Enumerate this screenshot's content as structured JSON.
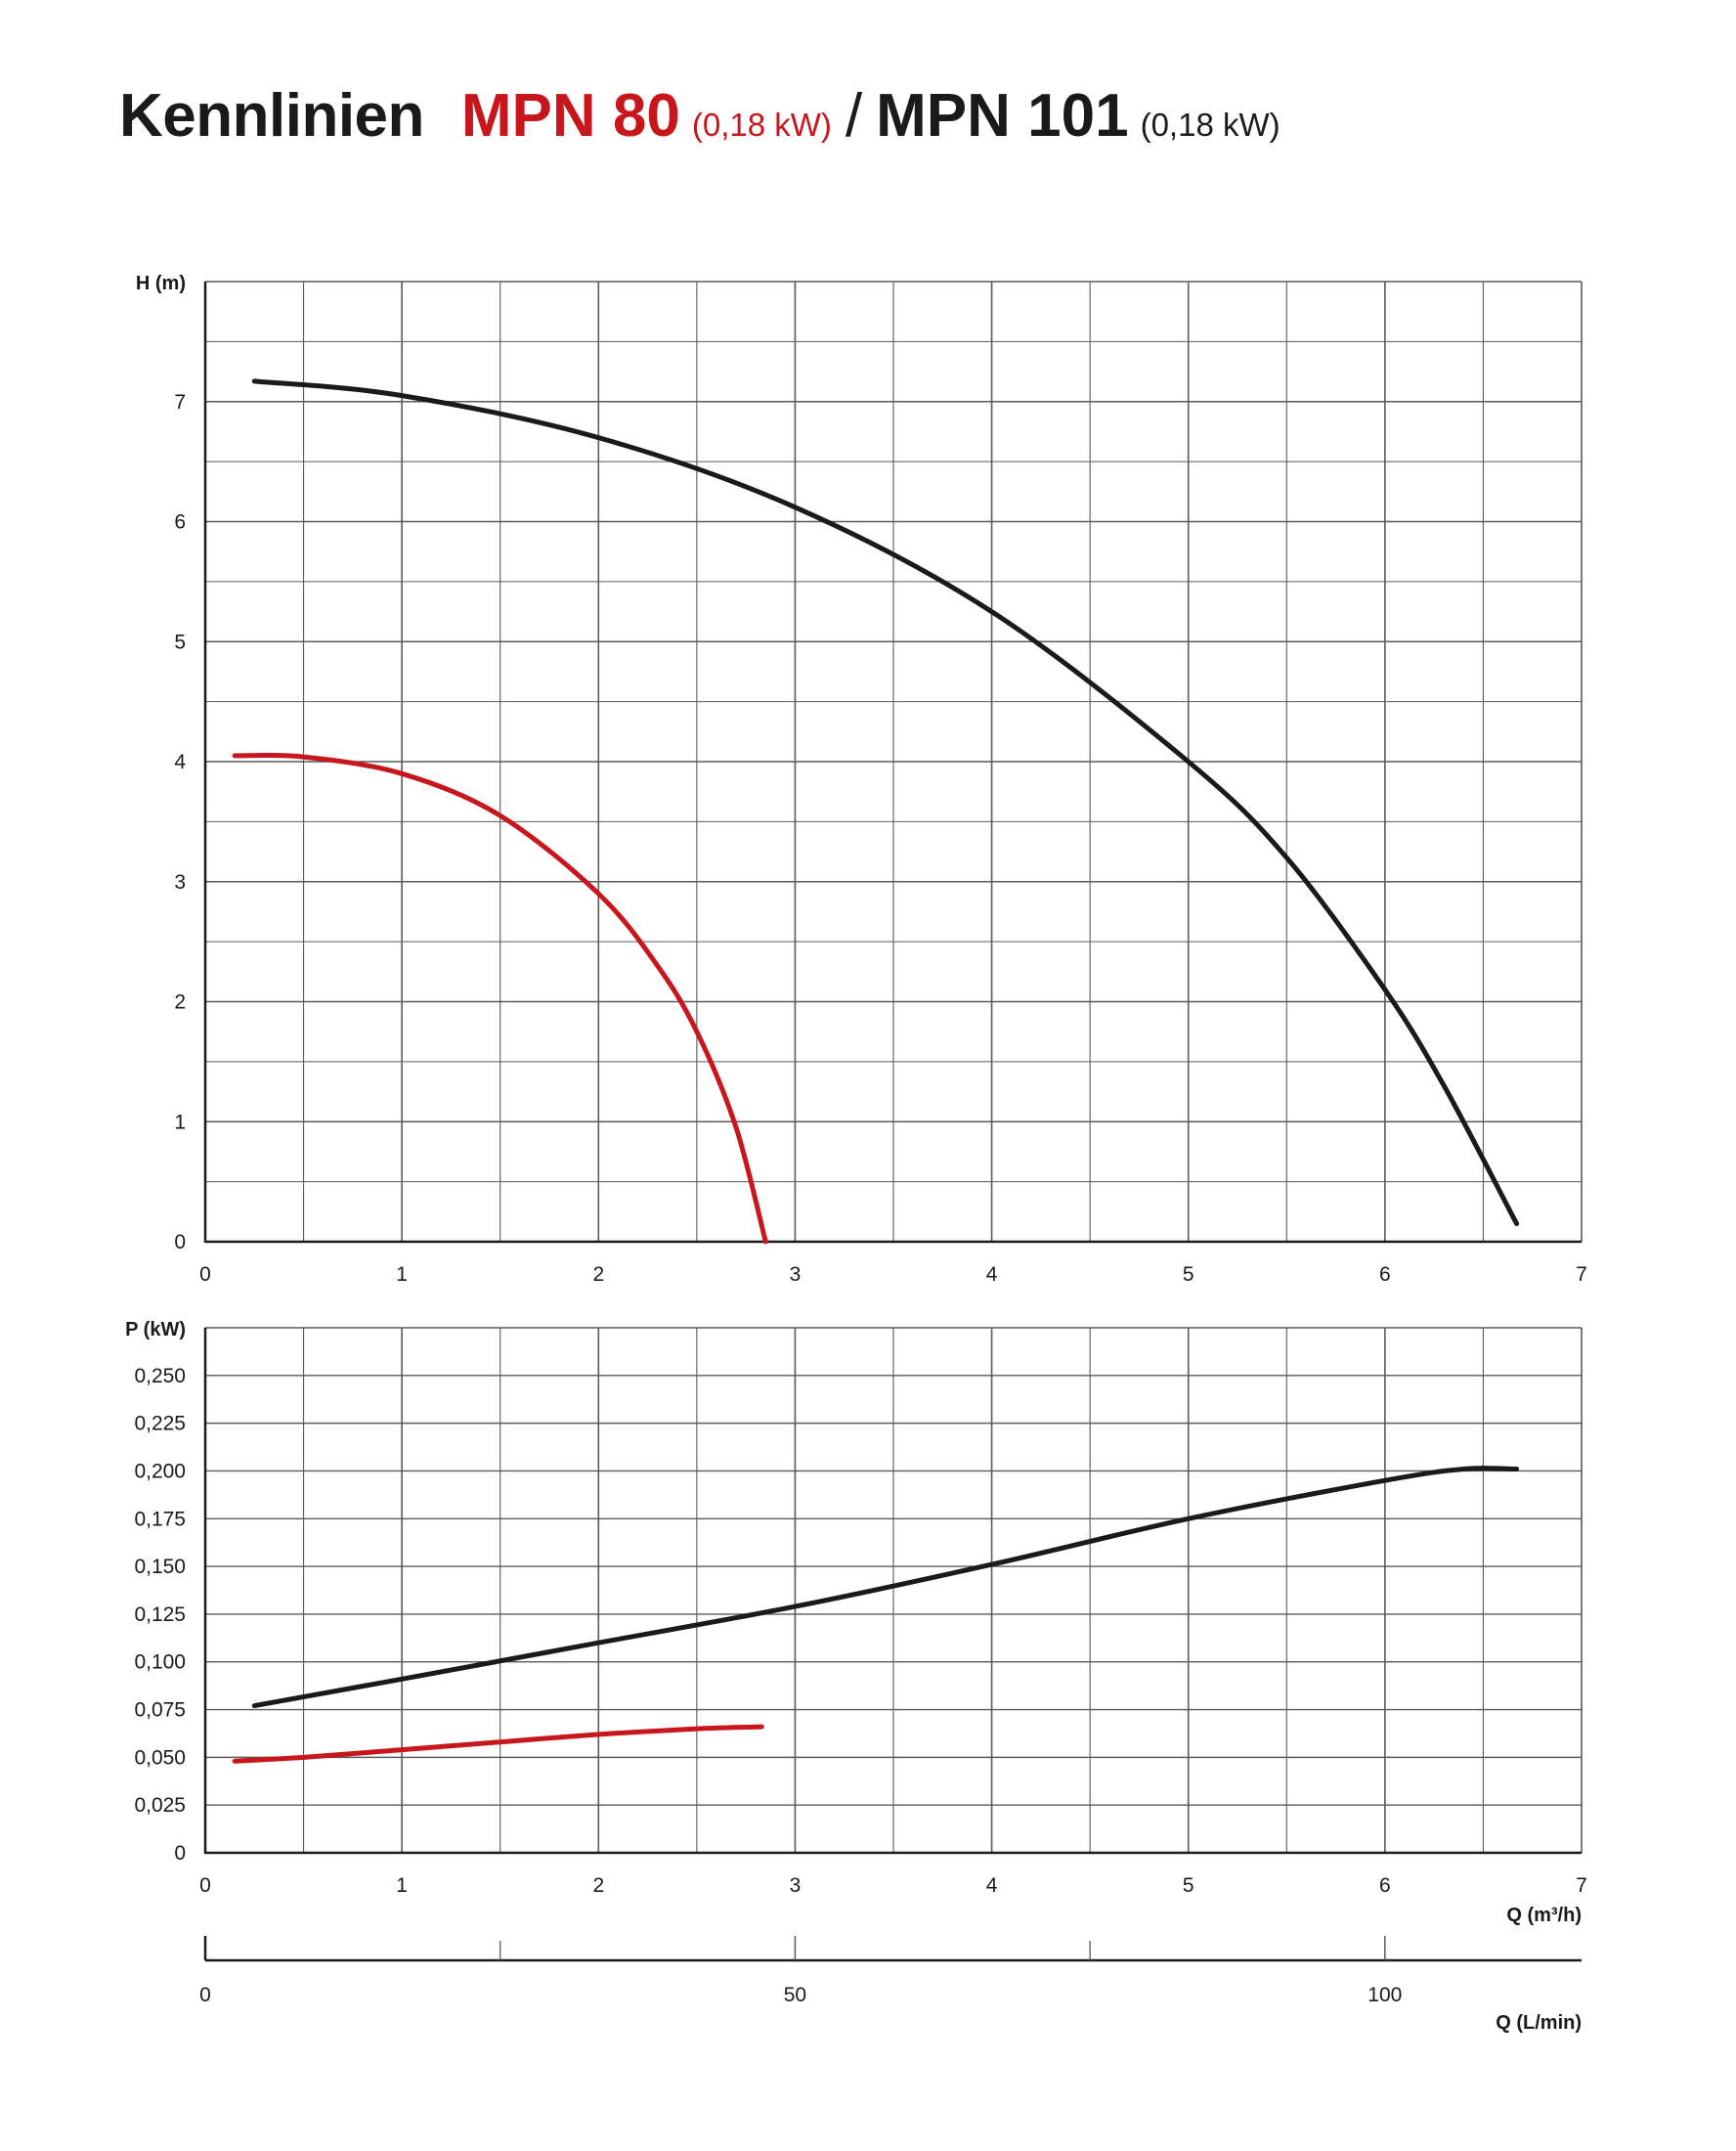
{
  "title": {
    "main": "Kennlinien",
    "model_a": "MPN 80",
    "model_a_power": "(0,18 kW)",
    "separator": "/",
    "model_b": "MPN 101",
    "model_b_power": "(0,18 kW)"
  },
  "colors": {
    "mpn80": "#c8161d",
    "mpn101": "#1a1a1a",
    "grid": "#5a5a5a",
    "axis": "#1a1a1a"
  },
  "chart_data": [
    {
      "type": "line",
      "ylabel": "H (m)",
      "xlim": [
        0,
        7
      ],
      "ylim": [
        0,
        8
      ],
      "xticks": [
        "0",
        "1",
        "2",
        "3",
        "4",
        "5",
        "6",
        "7"
      ],
      "yticks": [
        "0",
        "1",
        "2",
        "3",
        "4",
        "5",
        "6",
        "7"
      ],
      "grid": true,
      "series": [
        {
          "name": "MPN 80",
          "color": "#c8161d",
          "points": [
            [
              0.15,
              4.05
            ],
            [
              0.5,
              4.04
            ],
            [
              1.0,
              3.9
            ],
            [
              1.5,
              3.55
            ],
            [
              2.0,
              2.9
            ],
            [
              2.3,
              2.3
            ],
            [
              2.5,
              1.75
            ],
            [
              2.7,
              0.95
            ],
            [
              2.85,
              0.0
            ]
          ]
        },
        {
          "name": "MPN 101",
          "color": "#1a1a1a",
          "points": [
            [
              0.25,
              7.17
            ],
            [
              1.0,
              7.05
            ],
            [
              2.0,
              6.7
            ],
            [
              3.0,
              6.12
            ],
            [
              4.0,
              5.25
            ],
            [
              5.0,
              4.0
            ],
            [
              5.5,
              3.2
            ],
            [
              6.0,
              2.1
            ],
            [
              6.3,
              1.3
            ],
            [
              6.67,
              0.15
            ]
          ]
        }
      ]
    },
    {
      "type": "line",
      "ylabel": "P (kW)",
      "xlabel": "Q (m³/h)",
      "xlim": [
        0,
        7
      ],
      "ylim": [
        0,
        0.275
      ],
      "xticks": [
        "0",
        "1",
        "2",
        "3",
        "4",
        "5",
        "6",
        "7"
      ],
      "yticks": [
        "0",
        "0,025",
        "0,050",
        "0,075",
        "0,100",
        "0,125",
        "0,150",
        "0,175",
        "0,200",
        "0,225",
        "0,250"
      ],
      "grid": true,
      "series": [
        {
          "name": "MPN 80",
          "color": "#c8161d",
          "points": [
            [
              0.15,
              0.048
            ],
            [
              0.5,
              0.05
            ],
            [
              1.0,
              0.054
            ],
            [
              1.5,
              0.058
            ],
            [
              2.0,
              0.062
            ],
            [
              2.5,
              0.065
            ],
            [
              2.83,
              0.066
            ]
          ]
        },
        {
          "name": "MPN 101",
          "color": "#1a1a1a",
          "points": [
            [
              0.25,
              0.077
            ],
            [
              1.0,
              0.091
            ],
            [
              2.0,
              0.11
            ],
            [
              3.0,
              0.129
            ],
            [
              4.0,
              0.151
            ],
            [
              5.0,
              0.175
            ],
            [
              6.0,
              0.195
            ],
            [
              6.4,
              0.201
            ],
            [
              6.67,
              0.201
            ]
          ]
        }
      ]
    }
  ],
  "secondary_axis": {
    "xlabel": "Q (L/min)",
    "xlim": [
      0,
      116.67
    ],
    "major_ticks": [
      0,
      50,
      100
    ],
    "major_labels": [
      "0",
      "50",
      "100"
    ],
    "minor_ticks": [
      25,
      75
    ]
  }
}
